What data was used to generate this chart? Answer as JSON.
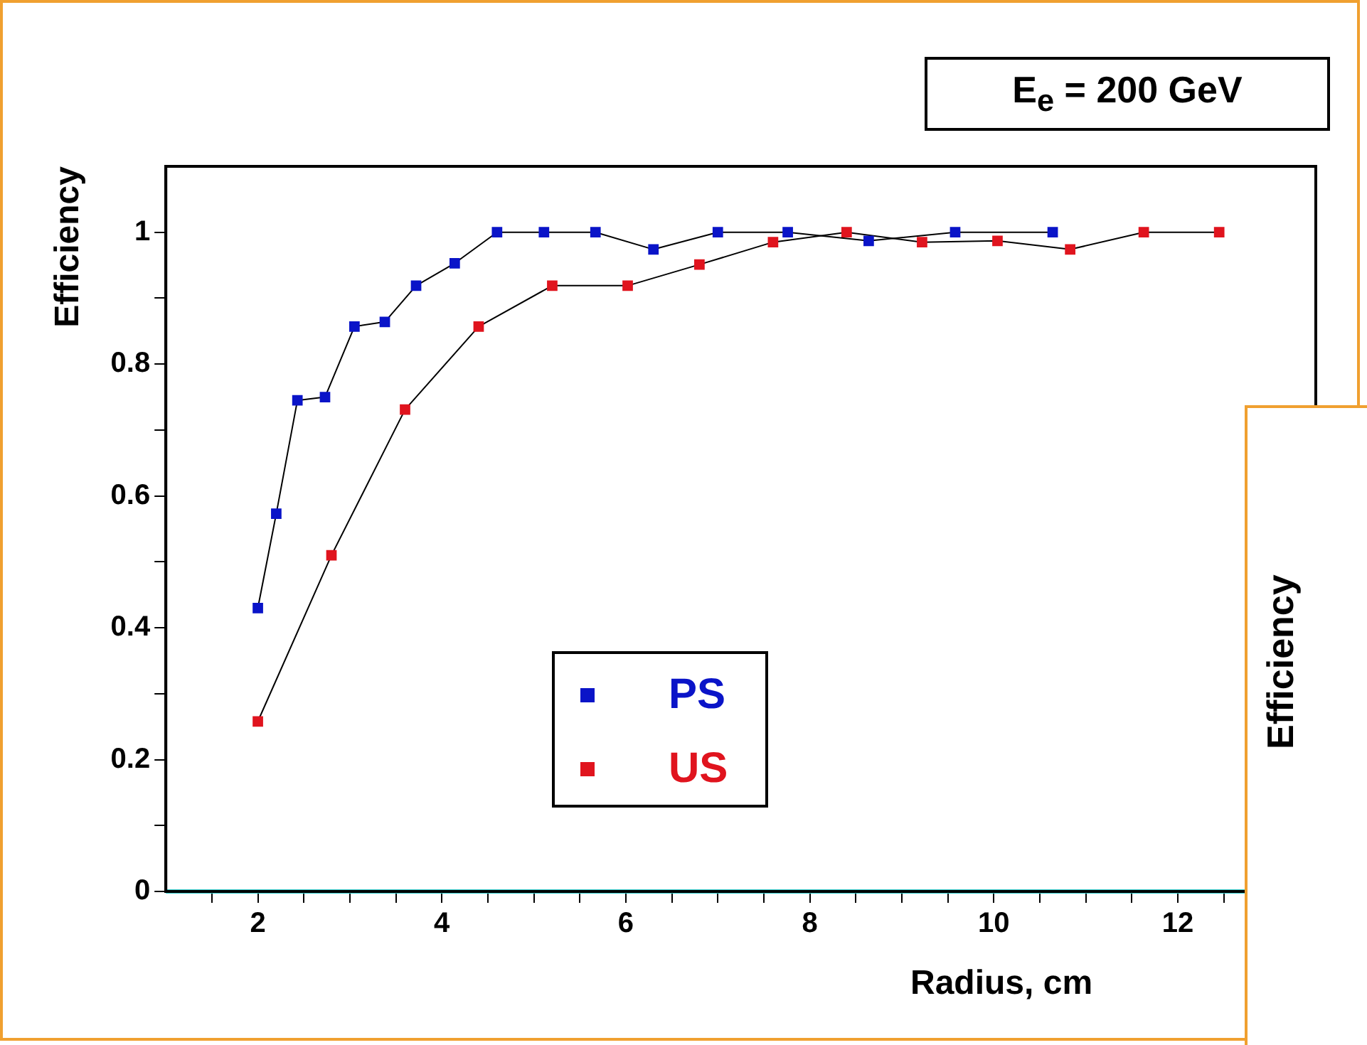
{
  "chart_data": [
    {
      "type": "line",
      "title": "E$_{e}$ = 200 GeV",
      "xlabel": "Radius, cm",
      "ylabel": "Efficiency",
      "xlim": [
        1,
        13.5
      ],
      "xticks": [
        {
          "value": 1.5,
          "label": null
        },
        2,
        {
          "value": 2.5,
          "label": null
        },
        {
          "value": 3,
          "label": null
        },
        {
          "value": 3.5,
          "label": null
        },
        4,
        {
          "value": 4.5,
          "label": null
        },
        {
          "value": 5,
          "label": null
        },
        {
          "value": 5.5,
          "label": null
        },
        6,
        {
          "value": 6.5,
          "label": null
        },
        {
          "value": 7,
          "label": null
        },
        {
          "value": 7.5,
          "label": null
        },
        8,
        {
          "value": 8.5,
          "label": null
        },
        {
          "value": 9,
          "label": null
        },
        {
          "value": 9.5,
          "label": null
        },
        10,
        {
          "value": 10.5,
          "label": null
        },
        {
          "value": 11,
          "label": null
        },
        {
          "value": 11.5,
          "label": null
        },
        12,
        {
          "value": 12.5,
          "label": null
        },
        {
          "value": 13,
          "label": null
        }
      ],
      "ylim": [
        0,
        1.1
      ],
      "yticks": [
        0,
        {
          "value": 0.1,
          "label": null
        },
        0.2,
        {
          "value": 0.3,
          "label": null
        },
        0.4,
        {
          "value": 0.5,
          "label": null
        },
        0.6,
        {
          "value": 0.7,
          "label": null
        },
        0.8,
        {
          "value": 0.9,
          "label": null
        },
        1
      ],
      "marker": "square",
      "legend": "bottom left",
      "grid": false,
      "ref_lines": [
        {
          "axis": "y",
          "value": 0,
          "color": "#33cccc"
        }
      ],
      "series": [
        {
          "name": "PS",
          "color": "#0a14c8",
          "x": [
            2,
            2.2,
            2.43,
            2.73,
            3.05,
            3.38,
            3.72,
            4.14,
            4.6,
            5.11,
            5.67,
            6.3,
            7.0,
            7.76,
            8.64,
            9.58,
            10.64
          ],
          "values": [
            0.43,
            0.573,
            0.745,
            0.75,
            0.857,
            0.864,
            0.919,
            0.953,
            1.0,
            1.0,
            1.0,
            0.974,
            1.0,
            1.0,
            0.987,
            1.0,
            1.0
          ]
        },
        {
          "name": "US",
          "color": "#e0141e",
          "x": [
            2,
            2.8,
            3.6,
            4.4,
            5.2,
            6.02,
            6.8,
            7.6,
            8.4,
            9.22,
            10.04,
            10.83,
            11.63,
            12.45
          ],
          "values": [
            0.258,
            0.51,
            0.731,
            0.857,
            0.919,
            0.919,
            0.951,
            0.985,
            1.0,
            0.985,
            0.987,
            0.974,
            1.0,
            1.0
          ]
        }
      ]
    },
    {
      "type": "other",
      "ylabel": "Efficiency"
    }
  ]
}
